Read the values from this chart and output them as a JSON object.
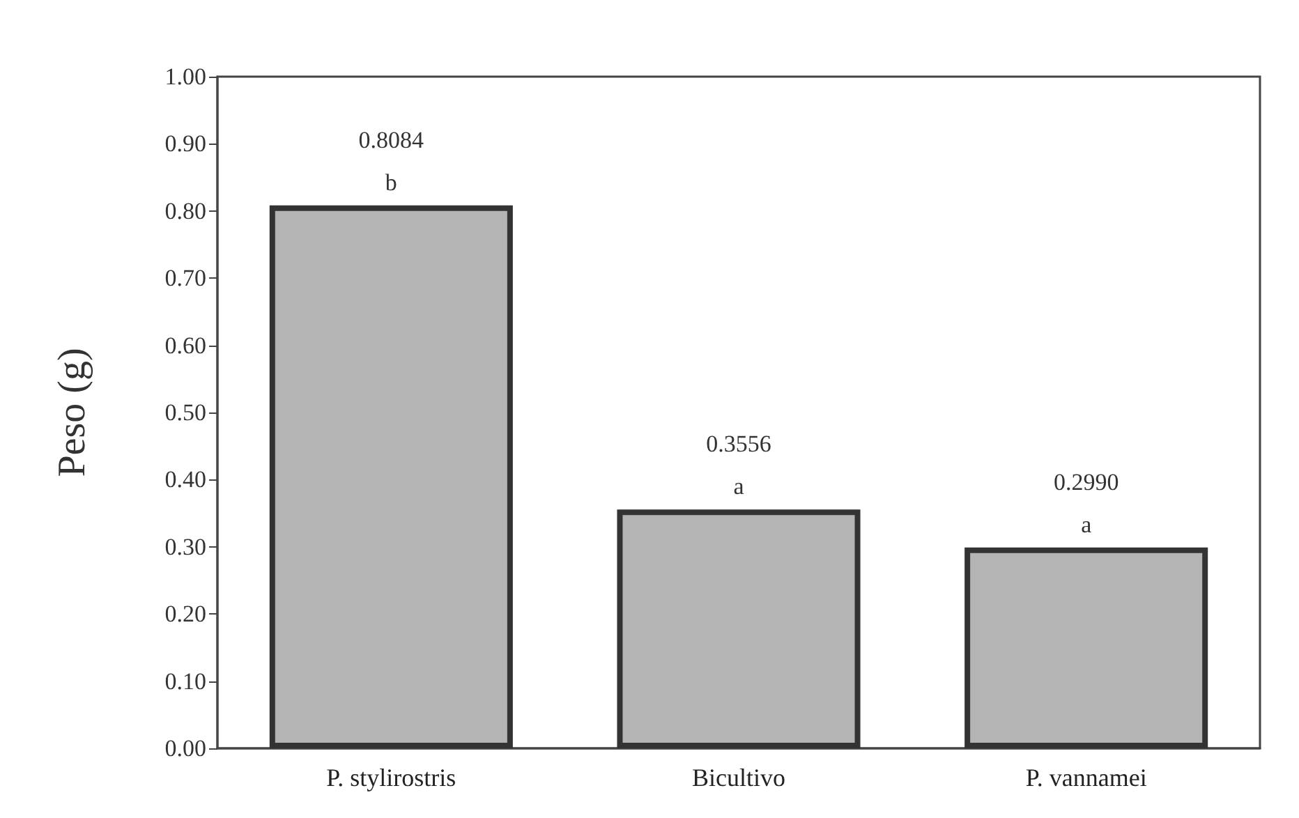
{
  "chart_data": {
    "type": "bar",
    "ylabel": "Peso (g)",
    "categories": [
      "P. stylirostris",
      "Bicultivo",
      "P. vannamei"
    ],
    "values": [
      0.8084,
      0.3556,
      0.299
    ],
    "value_labels": [
      "0.8084",
      "0.3556",
      "0.2990"
    ],
    "color": "#b4b4b4",
    "ylim": [
      0,
      1
    ],
    "yticks": [
      {
        "value": 0,
        "label": "0.00"
      },
      {
        "value": 0.1,
        "label": "0.10"
      },
      {
        "value": 0.2,
        "label": "0.20"
      },
      {
        "value": 0.3,
        "label": "0.30"
      },
      {
        "value": 0.4,
        "label": "0.40"
      },
      {
        "value": 0.5,
        "label": "0.50"
      },
      {
        "value": 0.6,
        "label": "0.60"
      },
      {
        "value": 0.7,
        "label": "0.70"
      },
      {
        "value": 0.8,
        "label": "0.80"
      },
      {
        "value": 0.9,
        "label": "0.90"
      },
      {
        "value": 1,
        "label": "1.00"
      }
    ],
    "annotations": [
      {
        "text": "b",
        "x": "P. stylirostris",
        "y": 0.8084
      },
      {
        "text": "a",
        "x": "Bicultivo",
        "y": 0.3556
      },
      {
        "text": "a",
        "x": "P. vannamei",
        "y": 0.299
      }
    ],
    "grid": false
  }
}
